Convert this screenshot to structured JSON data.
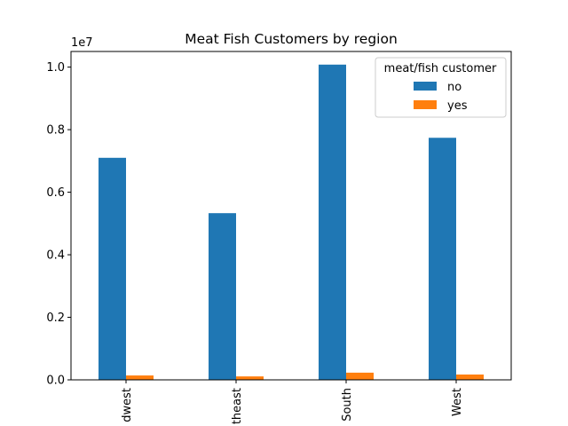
{
  "chart_data": {
    "type": "bar",
    "title": "Meat Fish Customers by region",
    "xlabel": "",
    "ylabel": "",
    "categories": [
      "Midwest",
      "Northeast",
      "South",
      "West"
    ],
    "category_tick_labels": [
      "dwest",
      "theast",
      "South",
      "West"
    ],
    "series": [
      {
        "name": "no",
        "values": [
          7100000,
          5330000,
          10080000,
          7740000
        ],
        "color": "#1f77b4"
      },
      {
        "name": "yes",
        "values": [
          140000,
          110000,
          230000,
          170000
        ],
        "color": "#ff7f0e"
      }
    ],
    "ylim": [
      0,
      10500000
    ],
    "yticks": [
      0,
      2000000,
      4000000,
      6000000,
      8000000,
      10000000
    ],
    "ytick_labels": [
      "0.0",
      "0.2",
      "0.4",
      "0.6",
      "0.8",
      "1.0"
    ],
    "y_offset_label": "1e7",
    "legend": {
      "title": "meat/fish customer",
      "placement": "upper-right",
      "entries": [
        "no",
        "yes"
      ]
    },
    "grid": false
  }
}
